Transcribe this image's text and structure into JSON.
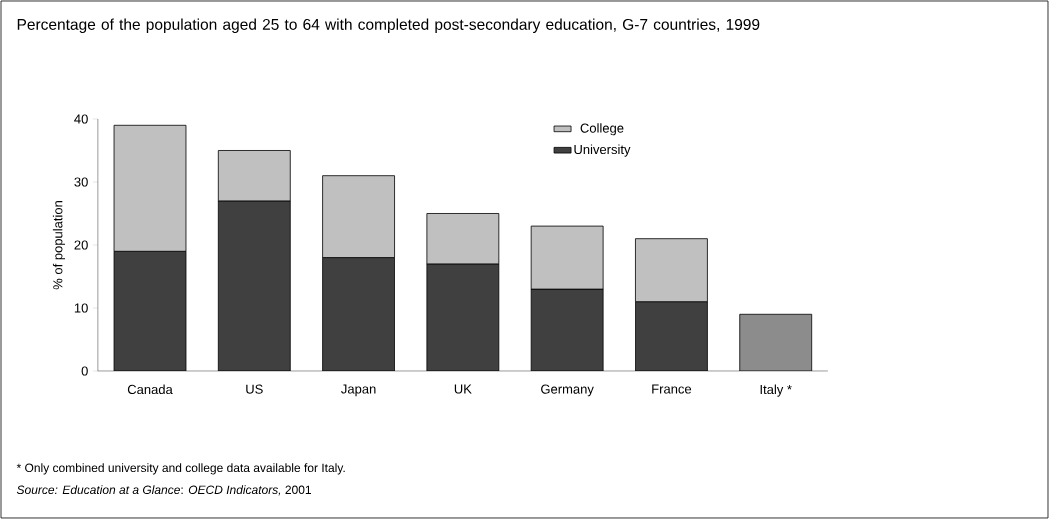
{
  "chart_data": {
    "type": "bar",
    "stacked": true,
    "title": "Percentage of the population aged 25 to 64 with completed post-secondary education, G-7 countries, 1999",
    "ylabel": "% of population",
    "categories": [
      "Canada",
      "US",
      "Japan",
      "UK",
      "Germany",
      "France",
      "Italy *"
    ],
    "series": [
      {
        "name": "University",
        "color": "#404040",
        "values": [
          19,
          27,
          18,
          17,
          13,
          11,
          null
        ]
      },
      {
        "name": "College",
        "color": "#c0c0c0",
        "values": [
          20,
          8,
          13,
          8,
          10,
          10,
          null
        ]
      },
      {
        "color": "#8c8c8c",
        "values": [
          null,
          null,
          null,
          null,
          null,
          null,
          9
        ]
      }
    ],
    "ylim": [
      0,
      40
    ],
    "yticks": [
      0,
      10,
      20,
      30,
      40
    ],
    "grid": false,
    "legend": "top",
    "annotations": [
      "* Only combined university and college data available for Italy.",
      "*Source: Education at a Glance*: *OECD Indicators,* 2001"
    ]
  }
}
